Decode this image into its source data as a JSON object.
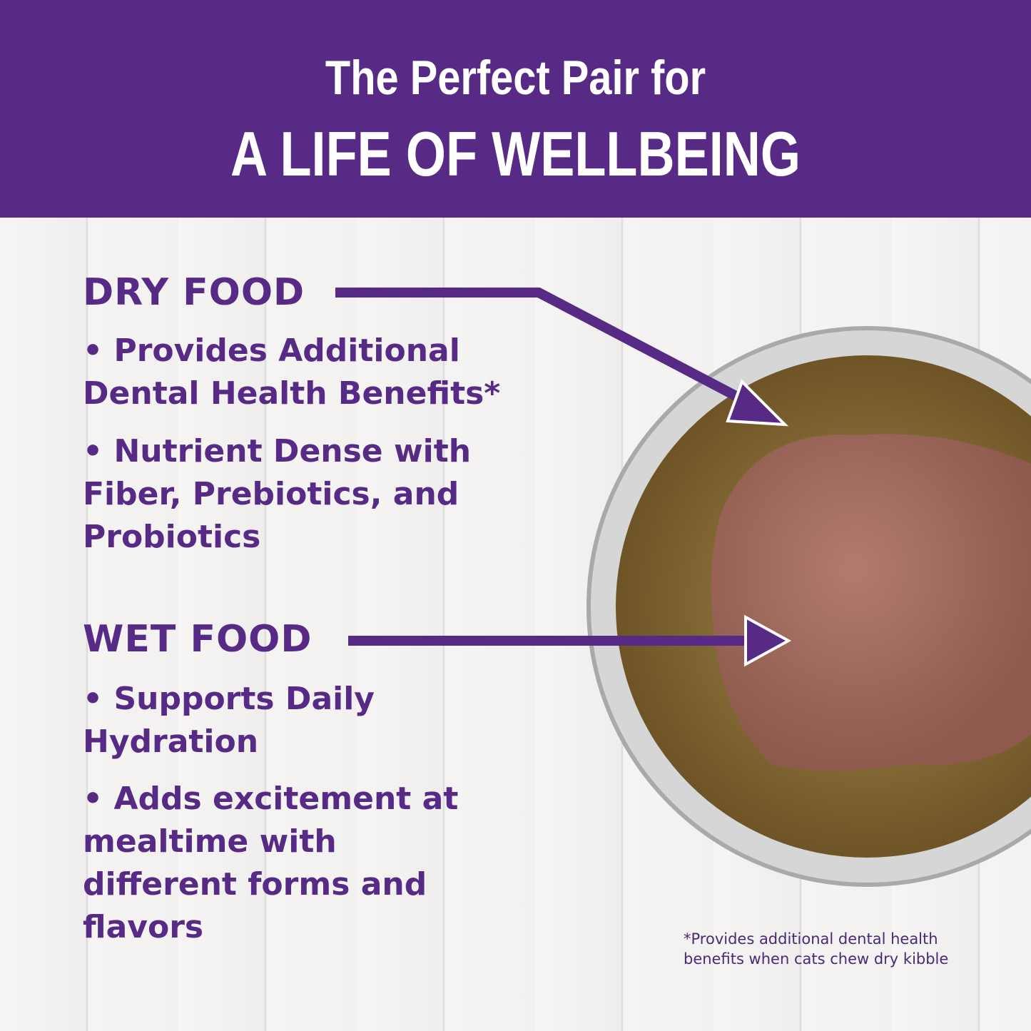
{
  "header": {
    "line1": "The Perfect Pair for",
    "line2": "A LIFE OF WELLBEING"
  },
  "dry": {
    "heading": "DRY FOOD",
    "bullets": [
      "• Provides Additional Dental Health Benefits*",
      "• Nutrient Dense with Fiber, Prebiotics, and Probiotics"
    ]
  },
  "wet": {
    "heading": "WET FOOD",
    "bullets": [
      "• Supports Daily Hydration",
      "• Adds excitement at mealtime with different forms and flavors"
    ]
  },
  "footnote": "*Provides additional dental health benefits when cats chew dry kibble",
  "colors": {
    "brand": "#572a86"
  }
}
